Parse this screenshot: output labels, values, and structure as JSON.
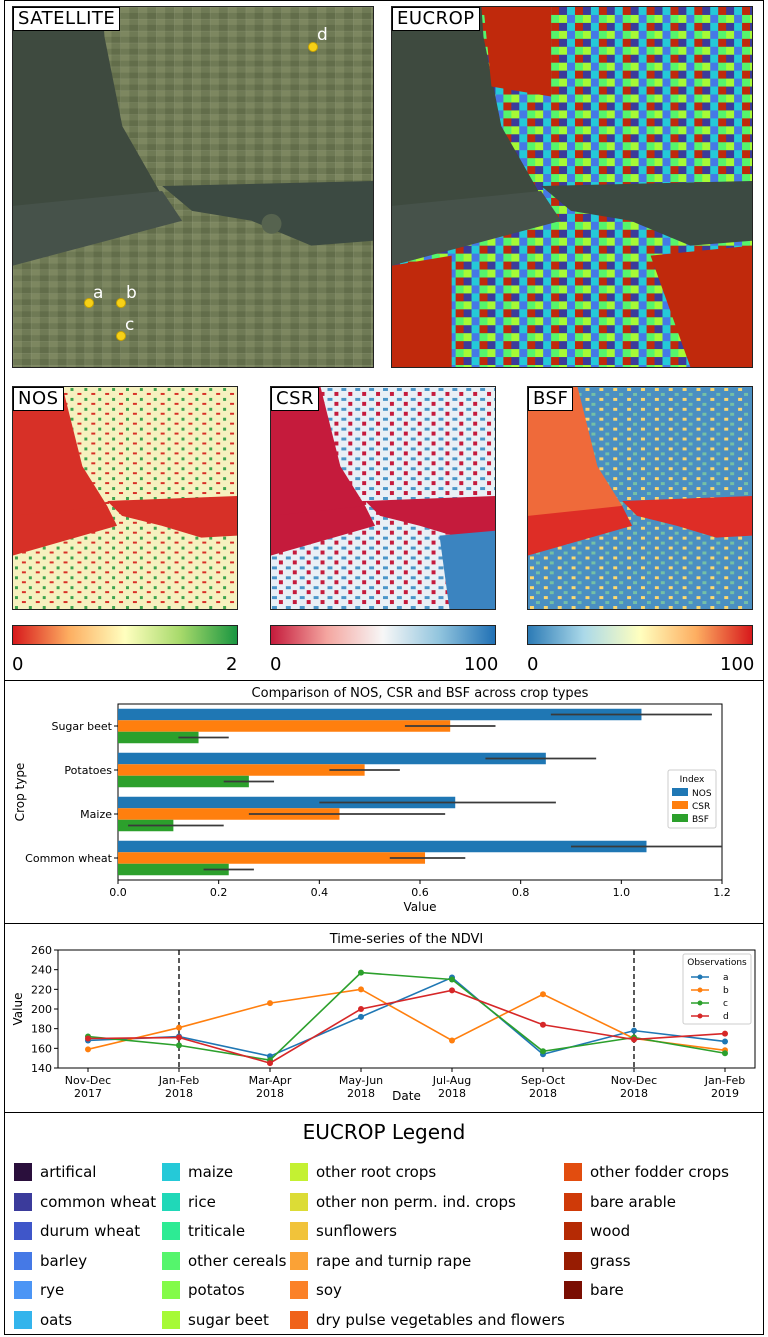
{
  "maps": {
    "satellite": {
      "title": "SATELLITE"
    },
    "eucrop": {
      "title": "EUCROP"
    },
    "nos": {
      "title": "NOS",
      "cbar_min": "0",
      "cbar_max": "2"
    },
    "csr": {
      "title": "CSR",
      "cbar_min": "0",
      "cbar_max": "100"
    },
    "bsf": {
      "title": "BSF",
      "cbar_min": "0",
      "cbar_max": "100"
    },
    "points": [
      "a",
      "b",
      "c",
      "d"
    ]
  },
  "colors": {
    "nos": "#1f77b4",
    "csr": "#ff7f0e",
    "bsf": "#2ca02c",
    "obs_a": "#1f77b4",
    "obs_b": "#ff7f0e",
    "obs_c": "#2ca02c",
    "obs_d": "#d62728",
    "point_marker": "#f7d117"
  },
  "chart_data": [
    {
      "type": "bar",
      "orientation": "horizontal",
      "title": "Comparison of NOS, CSR and BSF across crop types",
      "xlabel": "Value",
      "ylabel": "Crop type",
      "xlim": [
        0,
        1.2
      ],
      "xticks": [
        "0.0",
        "0.2",
        "0.4",
        "0.6",
        "0.8",
        "1.0",
        "1.2"
      ],
      "categories": [
        "Sugar beet",
        "Potatoes",
        "Maize",
        "Common wheat"
      ],
      "legend_title": "Index",
      "legend_position": "right",
      "series": [
        {
          "name": "NOS",
          "values": [
            1.04,
            0.85,
            0.67,
            1.05
          ],
          "err_low": [
            0.86,
            0.73,
            0.4,
            0.9
          ],
          "err_high": [
            1.18,
            0.95,
            0.87,
            1.2
          ]
        },
        {
          "name": "CSR",
          "values": [
            0.66,
            0.49,
            0.44,
            0.61
          ],
          "err_low": [
            0.57,
            0.42,
            0.26,
            0.54
          ],
          "err_high": [
            0.75,
            0.56,
            0.65,
            0.69
          ]
        },
        {
          "name": "BSF",
          "values": [
            0.16,
            0.26,
            0.11,
            0.22
          ],
          "err_low": [
            0.12,
            0.21,
            0.02,
            0.17
          ],
          "err_high": [
            0.22,
            0.31,
            0.21,
            0.27
          ]
        }
      ]
    },
    {
      "type": "line",
      "title": "Time-series of the NDVI",
      "xlabel": "Date",
      "ylabel": "Value",
      "ylim": [
        140,
        260
      ],
      "yticks": [
        "140",
        "160",
        "180",
        "200",
        "220",
        "240",
        "260"
      ],
      "categories": [
        "Nov-Dec\n2017",
        "Jan-Feb\n2018",
        "Mar-Apr\n2018",
        "May-Jun\n2018",
        "Jul-Aug\n2018",
        "Sep-Oct\n2018",
        "Nov-Dec\n2018",
        "Jan-Feb\n2019"
      ],
      "vlines_at": [
        "Jan-Feb\n2018",
        "Nov-Dec\n2018"
      ],
      "legend_title": "Observations",
      "legend_position": "top-right",
      "series": [
        {
          "name": "a",
          "values": [
            168,
            172,
            152,
            192,
            232,
            154,
            178,
            167
          ]
        },
        {
          "name": "b",
          "values": [
            159,
            181,
            206,
            220,
            168,
            215,
            170,
            158
          ]
        },
        {
          "name": "c",
          "values": [
            172,
            163,
            148,
            237,
            230,
            157,
            171,
            155
          ]
        },
        {
          "name": "d",
          "values": [
            170,
            171,
            145,
            200,
            219,
            184,
            169,
            175
          ]
        }
      ]
    }
  ],
  "legend": {
    "title": "EUCROP Legend",
    "columns": [
      [
        {
          "label": "artifical",
          "color": "#2a0f3c"
        },
        {
          "label": "common wheat",
          "color": "#3b3b9b"
        },
        {
          "label": "durum wheat",
          "color": "#3f56c9"
        },
        {
          "label": "barley",
          "color": "#4579e6"
        },
        {
          "label": "rye",
          "color": "#4b95f5"
        },
        {
          "label": "oats",
          "color": "#33b4ec"
        }
      ],
      [
        {
          "label": "maize",
          "color": "#25c9d8"
        },
        {
          "label": "rice",
          "color": "#20d8b8"
        },
        {
          "label": "triticale",
          "color": "#2deb94"
        },
        {
          "label": "other cereals",
          "color": "#55f56c"
        },
        {
          "label": "potatos",
          "color": "#83fb49"
        },
        {
          "label": "sugar beet",
          "color": "#a6fa35"
        }
      ],
      [
        {
          "label": "other root crops",
          "color": "#c4f132"
        },
        {
          "label": "other non perm. ind. crops",
          "color": "#dcdc36"
        },
        {
          "label": "sunflowers",
          "color": "#f1c33a"
        },
        {
          "label": "rape and turnip rape",
          "color": "#fba236"
        },
        {
          "label": "soy",
          "color": "#fb8128"
        },
        {
          "label": "dry pulse vegetables and flowers",
          "color": "#f0621a"
        }
      ],
      [
        {
          "label": "other fodder crops",
          "color": "#e24d0f"
        },
        {
          "label": "bare arable",
          "color": "#cf3a08"
        },
        {
          "label": "wood",
          "color": "#b52a04"
        },
        {
          "label": "grass",
          "color": "#971c02"
        },
        {
          "label": "bare",
          "color": "#7a0e03"
        }
      ]
    ]
  }
}
